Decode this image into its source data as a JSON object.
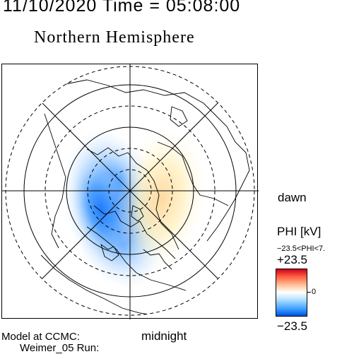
{
  "header": {
    "datetime": "11/10/2020 Time = 05:08:00",
    "title": "Northern Hemisphere"
  },
  "map": {
    "orientation_labels": {
      "right": "dawn",
      "bottom": "midnight"
    },
    "potential_pattern": {
      "negative_cell_color": "#1e7bff",
      "positive_cell_color": "#ffe3a0"
    }
  },
  "legend": {
    "title": "PHI [kV]",
    "range": "−23.5<PHI<7.",
    "max_label": "+23.5",
    "min_label": "−23.5",
    "zero_label": "0",
    "colors": {
      "max": "#c8001e",
      "zero": "#ffffff",
      "min": "#0050e0"
    }
  },
  "credits": {
    "line1": "Model at CCMC:",
    "line2": "Weimer_05 Run:"
  }
}
